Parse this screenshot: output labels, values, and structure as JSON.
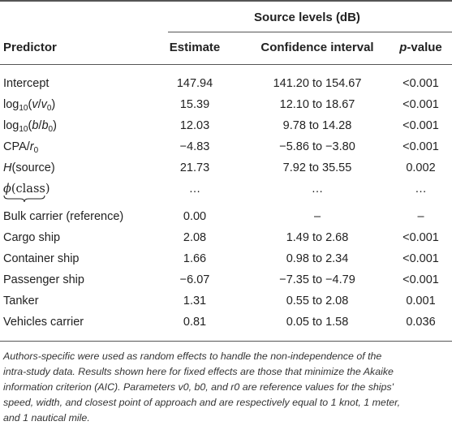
{
  "table": {
    "group_header": "Source levels (dB)",
    "columns": {
      "predictor": "Predictor",
      "estimate": "Estimate",
      "ci": "Confidence interval",
      "pvalue_italic": "p",
      "pvalue_rest": "-value"
    },
    "rows": [
      {
        "predictor": "Intercept",
        "estimate": "147.94",
        "ci": "141.20 to 154.67",
        "p": "<0.001"
      },
      {
        "predictor_html": "log10(v/v0)",
        "estimate": "15.39",
        "ci": "12.10 to 18.67",
        "p": "<0.001"
      },
      {
        "predictor_html": "log10(b/b0)",
        "estimate": "12.03",
        "ci": "9.78 to 14.28",
        "p": "<0.001"
      },
      {
        "predictor_html": "CPA/r0",
        "estimate": "−4.83",
        "ci": "−5.86 to −3.80",
        "p": "<0.001"
      },
      {
        "predictor_html": "H(source)",
        "estimate": "21.73",
        "ci": "7.92 to 35.55",
        "p": "0.002"
      },
      {
        "predictor_html": "φ(class)",
        "estimate": "…",
        "ci": "…",
        "p": "…"
      },
      {
        "predictor": "Bulk carrier (reference)",
        "estimate": "0.00",
        "ci": "–",
        "p": "–"
      },
      {
        "predictor": "Cargo ship",
        "estimate": "2.08",
        "ci": "1.49 to 2.68",
        "p": "<0.001"
      },
      {
        "predictor": "Container ship",
        "estimate": "1.66",
        "ci": "0.98 to 2.34",
        "p": "<0.001"
      },
      {
        "predictor": "Passenger ship",
        "estimate": "−6.07",
        "ci": "−7.35 to −4.79",
        "p": "<0.001"
      },
      {
        "predictor": "Tanker",
        "estimate": "1.31",
        "ci": "0.55 to 2.08",
        "p": "0.001"
      },
      {
        "predictor": "Vehicles carrier",
        "estimate": "0.81",
        "ci": "0.05 to 1.58",
        "p": "0.036"
      }
    ],
    "footnote_lines": [
      "Authors-specific were used as random effects to handle the non-independence of the",
      "intra-study data. Results shown here for fixed effects are those that minimize the Akaike",
      "information criterion (AIC). Parameters v0, b0, and r0 are reference values for the ships'",
      "speed, width, and closest point of approach and are respectively equal to 1 knot, 1 meter,",
      "and 1 nautical mile."
    ]
  }
}
